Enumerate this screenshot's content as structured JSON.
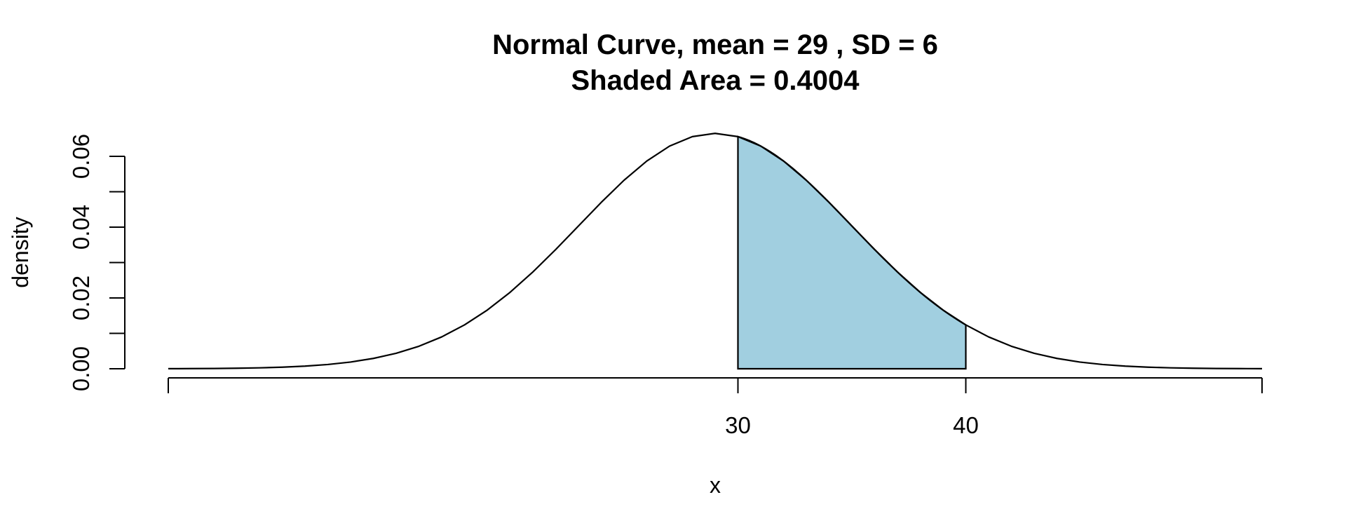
{
  "chart_data": {
    "type": "area",
    "title": "Normal Curve, mean =  29 , SD =  6",
    "subtitle": "Shaded Area =  0.4004",
    "xlabel": "x",
    "ylabel": "density",
    "distribution": {
      "mean": 29,
      "sd": 6
    },
    "xlim": [
      5,
      53
    ],
    "ylim": [
      0,
      0.06
    ],
    "x_ticks": [
      30,
      40
    ],
    "x_tick_labels": [
      "30",
      "40"
    ],
    "x_axis_range": [
      5,
      53
    ],
    "y_ticks": [
      0,
      0.01,
      0.02,
      0.03,
      0.04,
      0.05,
      0.06
    ],
    "y_tick_labels": [
      "0.00",
      "",
      "0.02",
      "",
      "0.04",
      "",
      "0.06"
    ],
    "shaded_region": {
      "from": 30,
      "to": 40,
      "area": 0.4004,
      "color": "#a1cfe0"
    },
    "curve_step": 1,
    "grid": false,
    "legend": "none"
  }
}
